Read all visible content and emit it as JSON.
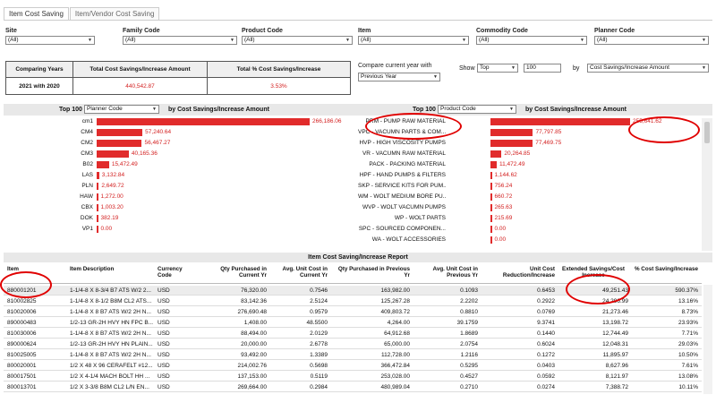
{
  "tabs": [
    {
      "label": "Item Cost Saving"
    },
    {
      "label": "Item/Vendor Cost Saving"
    }
  ],
  "filters": {
    "site": {
      "label": "Site",
      "value": "(All)"
    },
    "family": {
      "label": "Family Code",
      "value": "(All)"
    },
    "product": {
      "label": "Product Code",
      "value": "(All)"
    },
    "item": {
      "label": "Item",
      "value": "(All)"
    },
    "commodity": {
      "label": "Commodity Code",
      "value": "(All)"
    },
    "planner": {
      "label": "Planner Code",
      "value": "(All)"
    }
  },
  "summary": {
    "h1": "Comparing Years",
    "h2": "Total Cost Savings/Increase Amount",
    "h3": "Total % Cost Savings/Increase",
    "v1": "2021 with 2020",
    "v2": "440,542.87",
    "v3": "3.53%"
  },
  "compare": {
    "label": "Compare current year with",
    "value": "Previous Year",
    "show_label": "Show",
    "show_value": "Top",
    "count": "100",
    "by_label": "by",
    "by_value": "Cost Savings/Increase Amount"
  },
  "left_chart": {
    "top_label": "Top 100",
    "dim": "Planner Code",
    "by_text": "by Cost Savings/Increase Amount"
  },
  "right_chart": {
    "top_label": "Top 100",
    "dim": "Product Code",
    "by_text": "by Cost Savings/Increase Amount"
  },
  "chart_data": [
    {
      "type": "bar",
      "categories": [
        "cm1",
        "CM4",
        "CM2",
        "CM3",
        "B02",
        "LAS",
        "PLN",
        "HAW",
        "CBX",
        "DOK",
        "VP1"
      ],
      "values": [
        266186.06,
        57240.64,
        56467.27,
        40165.36,
        15472.49,
        3132.84,
        2649.72,
        1272.0,
        1003.2,
        382.19,
        0.0
      ],
      "labels": [
        "266,186.06",
        "57,240.64",
        "56,467.27",
        "40,165.36",
        "15,472.49",
        "3,132.84",
        "2,649.72",
        "1,272.00",
        "1,003.20",
        "382.19",
        "0.00"
      ]
    },
    {
      "type": "bar",
      "categories": [
        "PRM - PUMP RAW MATERIAL",
        "VPC - VACUMN PARTS & COM...",
        "HVP - HIGH VISCOSITY PUMPS",
        "VR - VACUMN RAW MATERIAL",
        "PACK - PACKING MATERIAL",
        "HPF - HAND PUMPS & FILTERS",
        "SKP - SERVICE KITS FOR PUM...",
        "WM - WOLT MEDIUM BORE PU...",
        "WVP - WOLT VACUMN PUMPS",
        "WP - WOLT PARTS",
        "SPC - SOURCED COMPONEN...",
        "WA - WOLT ACCESSORIES"
      ],
      "values": [
        255641.62,
        77797.85,
        77469.75,
        20264.85,
        11472.49,
        1144.62,
        756.24,
        660.72,
        265.63,
        215.69,
        0.0,
        0.0
      ],
      "labels": [
        "255,641.62",
        "77,797.85",
        "77,469.75",
        "20,264.85",
        "11,472.49",
        "1,144.62",
        "756.24",
        "660.72",
        "265.63",
        "215.69",
        "0.00",
        "0.00"
      ]
    }
  ],
  "report": {
    "title": "Item Cost Saving/Increase Report",
    "headers": [
      "Item",
      "Item Description",
      "Currency Code",
      "Qty Purchased in Current Yr",
      "Avg. Unit Cost in Current Yr",
      "Qty Purchased in Previous Yr",
      "Avg. Unit Cost in Previous Yr",
      "Unit Cost Reduction/Increase",
      "Extended Savings/Cost Increase",
      "% Cost Saving/Increase"
    ],
    "rows": [
      [
        "880001201",
        "1-1/4-8 X 8-3/4 B7 ATS W/2 2...",
        "USD",
        "76,320.00",
        "0.7546",
        "163,982.00",
        "0.1093",
        "0.6453",
        "49,251.43",
        "590.37%"
      ],
      [
        "810002825",
        "1-1/4-8 X 8-1/2 B8M CL2 ATS...",
        "USD",
        "83,142.36",
        "2.5124",
        "125,267.28",
        "2.2202",
        "0.2922",
        "24,296.99",
        "13.16%"
      ],
      [
        "810020006",
        "1-1/4-8 X 8 B7 ATS W/2 2H N...",
        "USD",
        "276,690.48",
        "0.9579",
        "409,803.72",
        "0.8810",
        "0.0769",
        "21,273.46",
        "8.73%"
      ],
      [
        "890000483",
        "1/2-13 GR-2H HVY HN FPC B...",
        "USD",
        "1,408.00",
        "48.5500",
        "4,264.00",
        "39.1759",
        "9.3741",
        "13,198.72",
        "23.93%"
      ],
      [
        "810030006",
        "1-1/4-8 X 8 B7 ATS W/2 2H N...",
        "USD",
        "88,494.00",
        "2.0129",
        "64,912.68",
        "1.8689",
        "0.1440",
        "12,744.49",
        "7.71%"
      ],
      [
        "890000624",
        "1/2-13 GR-2H HVY HN PLAIN...",
        "USD",
        "20,000.00",
        "2.6778",
        "65,000.00",
        "2.0754",
        "0.6024",
        "12,048.31",
        "29.03%"
      ],
      [
        "810025005",
        "1-1/4-8 X 8 B7 ATS W/2 2H N...",
        "USD",
        "93,492.00",
        "1.3389",
        "112,728.00",
        "1.2116",
        "0.1272",
        "11,895.97",
        "10.50%"
      ],
      [
        "800020001",
        "1/2 X 48 X 96 CERAFELT #12...",
        "USD",
        "214,002.76",
        "0.5698",
        "366,472.84",
        "0.5295",
        "0.0403",
        "8,627.96",
        "7.61%"
      ],
      [
        "800017501",
        "1/2 X 4-1/4 MACH BOLT HH ...",
        "USD",
        "137,153.00",
        "0.5119",
        "253,028.00",
        "0.4527",
        "0.0592",
        "8,121.97",
        "13.08%"
      ],
      [
        "800013701",
        "1/2 X 3-3/8 B8M CL2 L/N EN...",
        "USD",
        "269,664.00",
        "0.2984",
        "480,989.04",
        "0.2710",
        "0.0274",
        "7,388.72",
        "10.11%"
      ]
    ]
  }
}
